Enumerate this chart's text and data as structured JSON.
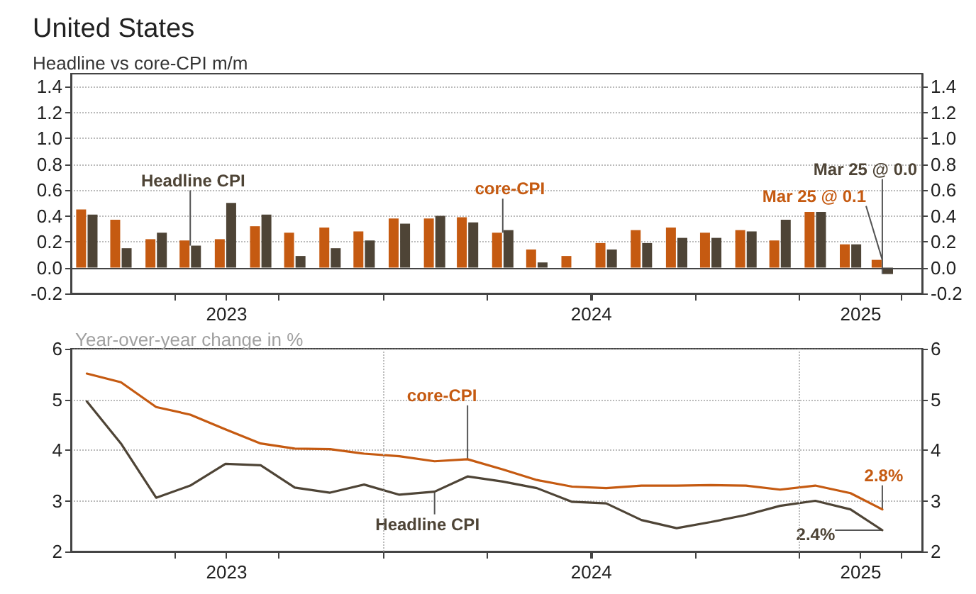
{
  "chart_data": [
    {
      "type": "bar",
      "title": "United States",
      "subtitle": "Headline vs core-CPI m/m",
      "x": [
        "2023-04-15",
        "2023-05-15",
        "2023-06-15",
        "2023-07-15",
        "2023-08-15",
        "2023-09-15",
        "2023-10-15",
        "2023-11-15",
        "2023-12-15",
        "2024-01-15",
        "2024-02-15",
        "2024-03-15",
        "2024-04-15",
        "2024-05-15",
        "2024-06-15",
        "2024-07-15",
        "2024-08-15",
        "2024-09-15",
        "2024-10-15",
        "2024-11-15",
        "2024-12-15",
        "2025-01-15",
        "2025-02-15",
        "2025-03-15"
      ],
      "series": [
        {
          "color": "#c55a11",
          "values": [
            0.45,
            0.37,
            0.22,
            0.21,
            0.22,
            0.32,
            0.27,
            0.31,
            0.28,
            0.38,
            0.38,
            0.39,
            0.27,
            0.14,
            0.09,
            0.19,
            0.29,
            0.31,
            0.27,
            0.29,
            0.21,
            0.43,
            0.18,
            0.06
          ]
        },
        {
          "color": "#4e4436",
          "values": [
            0.41,
            0.15,
            0.27,
            0.17,
            0.5,
            0.41,
            0.09,
            0.15,
            0.21,
            0.34,
            0.4,
            0.35,
            0.29,
            0.04,
            0,
            0.14,
            0.19,
            0.23,
            0.23,
            0.28,
            0.37,
            0.43,
            0.18,
            -0.05
          ]
        }
      ],
      "xlim": [
        "2023-04-01",
        "2025-04-19"
      ],
      "xticks": [
        {
          "value": "2023-07-01",
          "label": null
        },
        {
          "value": "2023-10-01",
          "label": null
        },
        {
          "value": "2024-01-01",
          "label": null
        },
        {
          "value": "2024-04-01",
          "label": null
        },
        {
          "value": "2024-07-01",
          "label": null
        },
        {
          "value": "2024-10-01",
          "label": null
        },
        {
          "value": "2025-01-01",
          "label": null
        },
        {
          "value": "2025-04-01",
          "label": null
        },
        {
          "value": "2023-08-16",
          "label": "2023"
        },
        {
          "value": "2024-07-02",
          "label": "2024"
        },
        {
          "value": "2025-02-24",
          "label": "2025"
        }
      ],
      "ylim": [
        -0.2,
        1.5
      ],
      "yticks": [
        -0.2,
        {
          "value": 0,
          "label": "0.0"
        },
        0.2,
        0.4,
        0.6,
        0.8,
        {
          "value": 1,
          "label": "1.0"
        },
        1.2,
        1.4
      ],
      "y2lim": [
        -0.2,
        1.5
      ],
      "y2ticks": [
        -0.2,
        {
          "value": 0,
          "label": "0.0"
        },
        0.2,
        0.4,
        0.6,
        0.8,
        {
          "value": 1,
          "label": "1.0"
        },
        1.2,
        1.4
      ],
      "grid": "y",
      "ref_lines": [
        {
          "axis": "y",
          "value": 0,
          "color": "#444444",
          "line_style": "solid"
        }
      ],
      "annotations": [
        {
          "text": "Headline CPI",
          "x": "2023-07-15",
          "y": 0.17
        },
        {
          "text": "core-CPI",
          "x": "2024-04-15",
          "y": 0.27
        },
        {
          "text": "Mar 25 @ 0.1",
          "x": "2025-03-15",
          "y": 0.06
        },
        {
          "text": "Mar 25 @ 0.0",
          "x": "2025-03-15",
          "y": -0.05
        }
      ]
    },
    {
      "type": "line",
      "subtitle": "Year-over-year change in %",
      "x": [
        "2023-04-15",
        "2023-05-15",
        "2023-06-15",
        "2023-07-15",
        "2023-08-15",
        "2023-09-15",
        "2023-10-15",
        "2023-11-15",
        "2023-12-15",
        "2024-01-15",
        "2024-02-15",
        "2024-03-15",
        "2024-04-15",
        "2024-05-15",
        "2024-06-15",
        "2024-07-15",
        "2024-08-15",
        "2024-09-15",
        "2024-10-15",
        "2024-11-15",
        "2024-12-15",
        "2025-01-15",
        "2025-02-15",
        "2025-03-15"
      ],
      "series": [
        {
          "color": "#c55a11",
          "values": [
            5.51,
            5.34,
            4.85,
            4.7,
            4.41,
            4.13,
            4.03,
            4.02,
            3.93,
            3.88,
            3.78,
            3.82,
            3.62,
            3.41,
            3.28,
            3.25,
            3.3,
            3.3,
            3.31,
            3.3,
            3.22,
            3.3,
            3.15,
            2.83
          ]
        },
        {
          "color": "#4e4436",
          "values": [
            4.96,
            4.13,
            3.06,
            3.3,
            3.73,
            3.7,
            3.26,
            3.16,
            3.32,
            3.12,
            3.18,
            3.48,
            3.38,
            3.25,
            2.98,
            2.95,
            2.62,
            2.46,
            2.58,
            2.72,
            2.9,
            3.0,
            2.83,
            2.42
          ]
        }
      ],
      "xlim": [
        "2023-04-01",
        "2025-04-19"
      ],
      "xticks": [
        {
          "value": "2023-07-01",
          "label": null
        },
        {
          "value": "2023-10-01",
          "label": null
        },
        {
          "value": "2024-01-01",
          "label": null
        },
        {
          "value": "2024-04-01",
          "label": null
        },
        {
          "value": "2024-07-01",
          "label": null
        },
        {
          "value": "2024-10-01",
          "label": null
        },
        {
          "value": "2025-01-01",
          "label": null
        },
        {
          "value": "2025-04-01",
          "label": null
        },
        {
          "value": "2023-08-16",
          "label": "2023"
        },
        {
          "value": "2024-07-02",
          "label": "2024"
        },
        {
          "value": "2025-02-24",
          "label": "2025"
        }
      ],
      "ylim": [
        2,
        6
      ],
      "yticks": [
        2,
        3,
        4,
        5,
        6
      ],
      "y2lim": [
        2,
        6
      ],
      "y2ticks": [
        2,
        3,
        4,
        5,
        6
      ],
      "grid": "y",
      "marker": "none",
      "line_style": "solid",
      "ref_lines": [
        {
          "axis": "x",
          "value": "2024-01-01",
          "color": "#bbbbbb",
          "line_style": "dotted"
        },
        {
          "axis": "x",
          "value": "2025-01-01",
          "color": "#bbbbbb",
          "line_style": "dotted"
        }
      ],
      "annotations": [
        {
          "text": "core-CPI",
          "x": "2024-03-15",
          "y": 3.82
        },
        {
          "text": "Headline CPI",
          "x": "2024-02-15",
          "y": 3.18
        },
        {
          "text": "2.8%",
          "x": "2025-03-15",
          "y": 2.83
        },
        {
          "text": "2.4%",
          "x": "2025-03-15",
          "y": 2.42
        }
      ]
    }
  ]
}
